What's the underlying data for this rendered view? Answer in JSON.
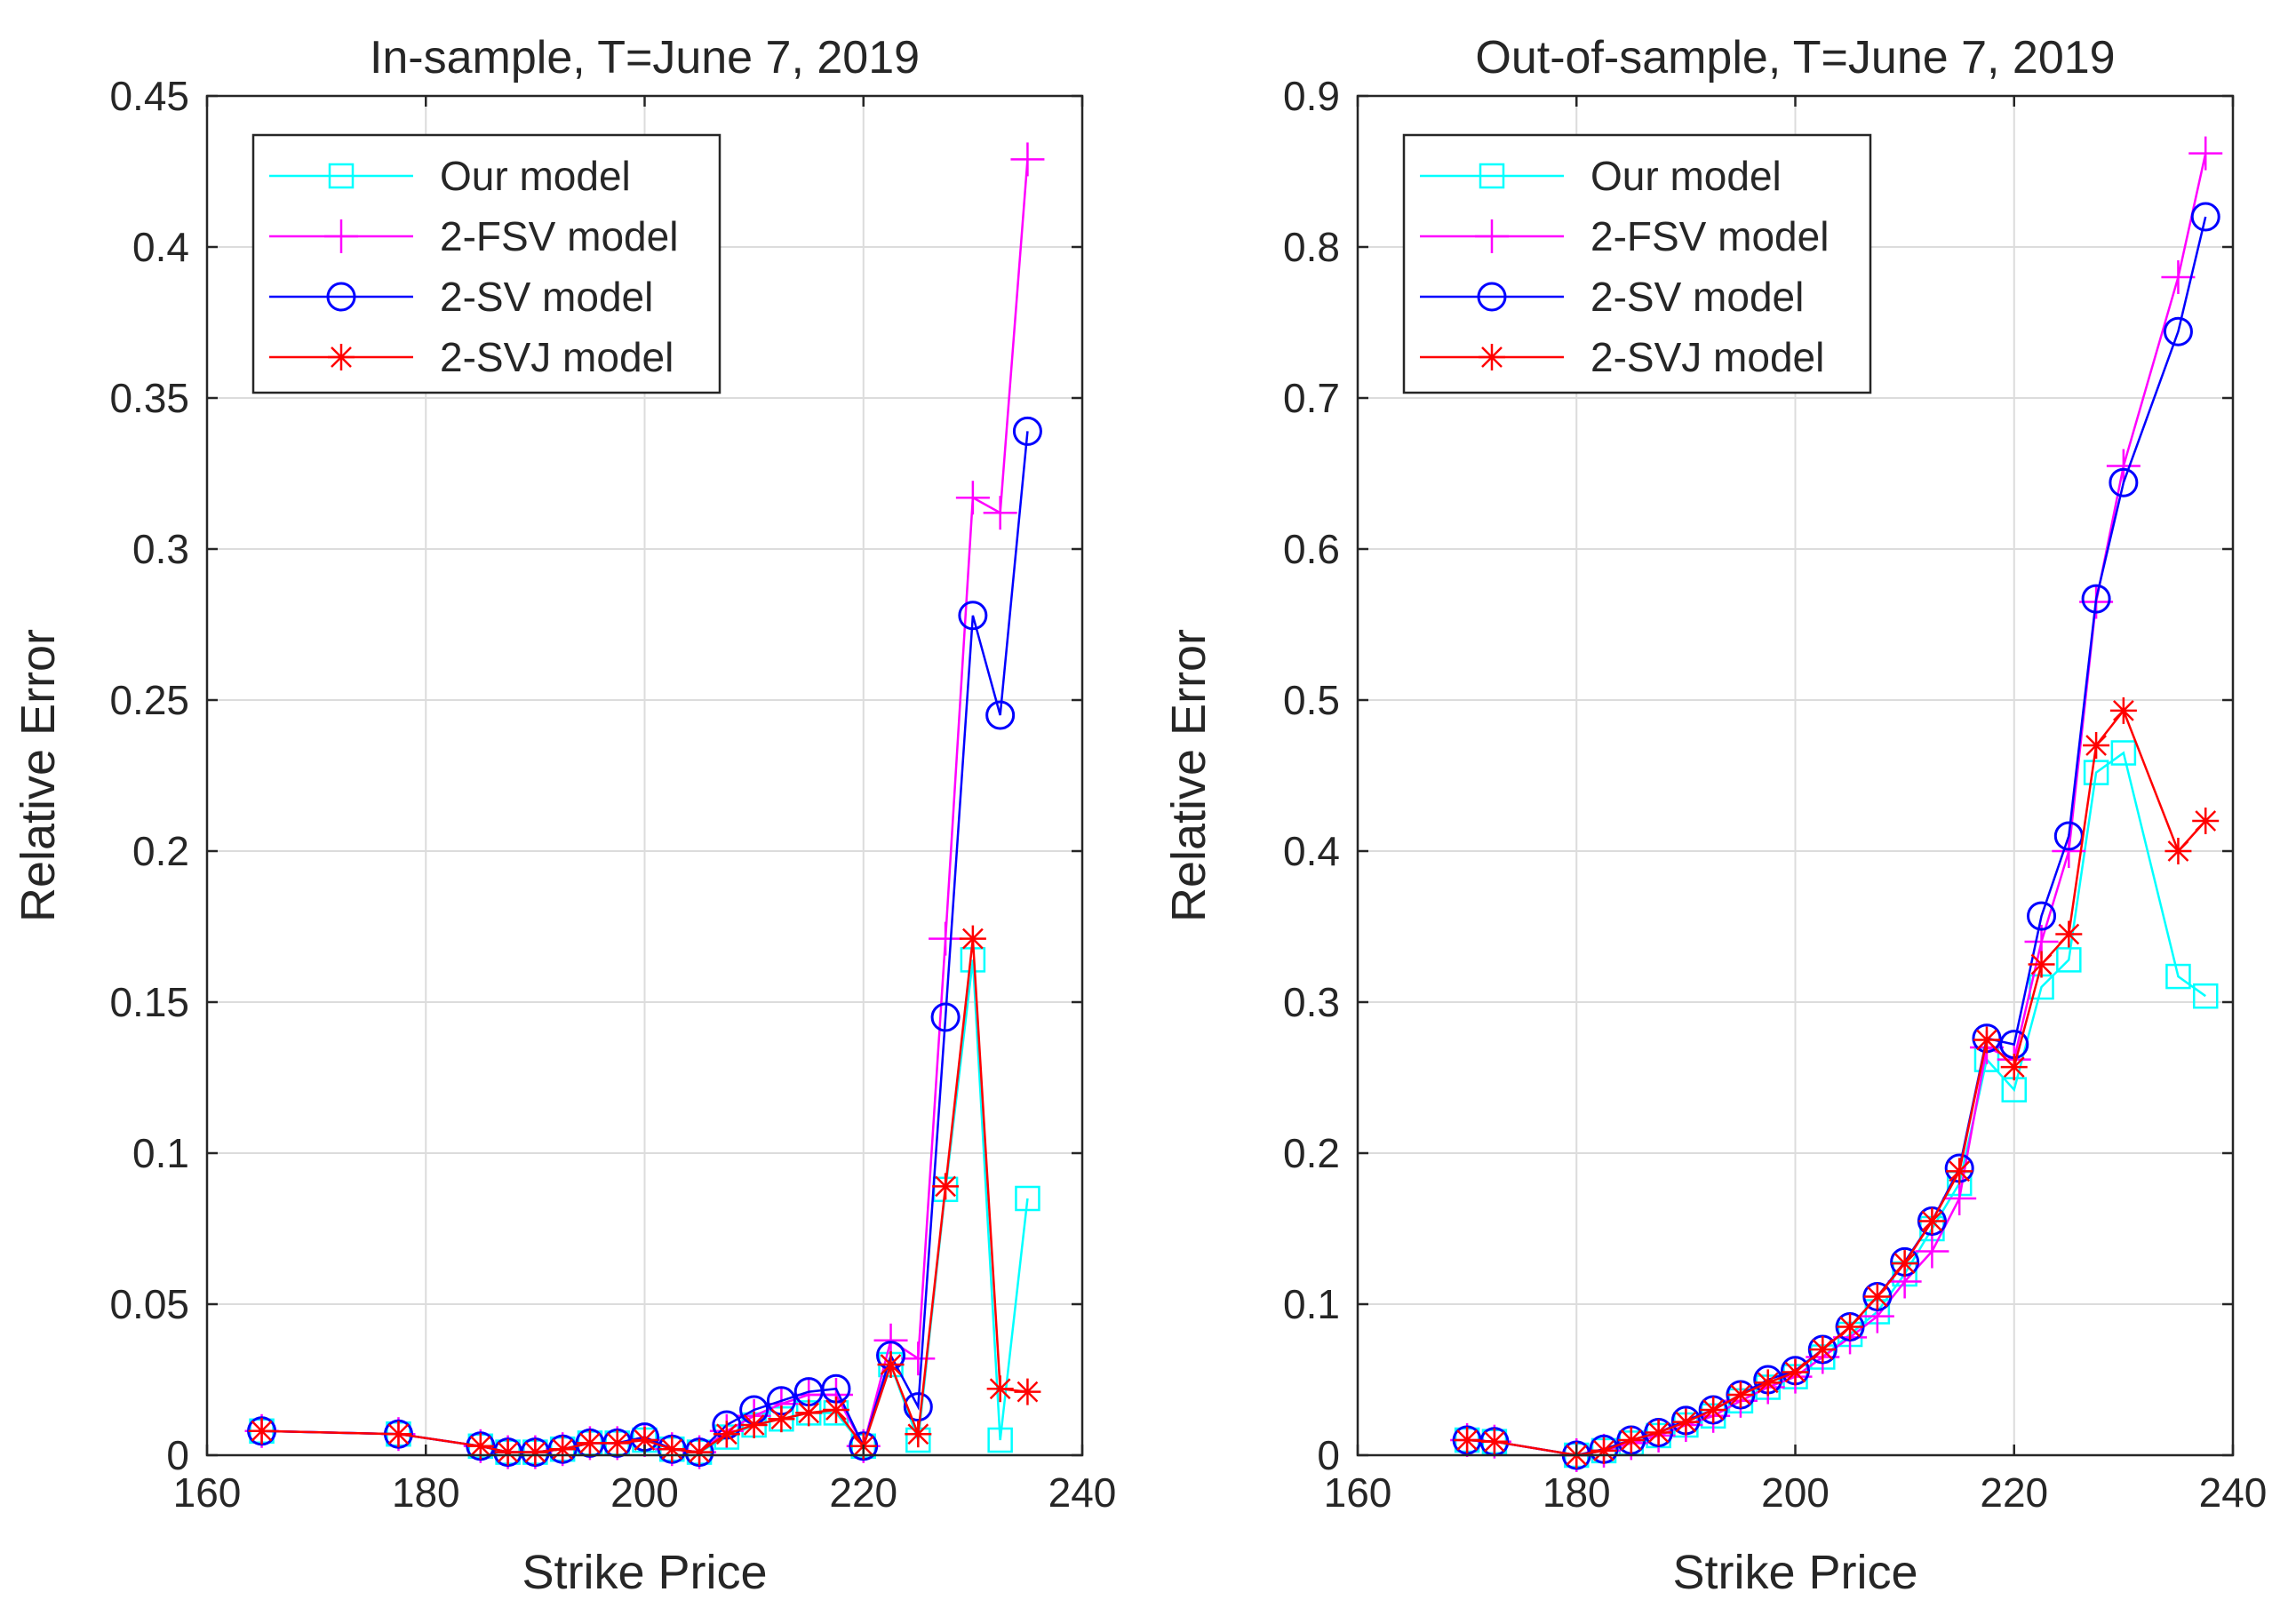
{
  "chart_data": [
    {
      "type": "line",
      "title": "In-sample, T=June 7, 2019",
      "xlabel": "Strike Price",
      "ylabel": "Relative Error",
      "xlim": [
        160,
        240
      ],
      "ylim": [
        0,
        0.45
      ],
      "xticks": [
        160,
        180,
        200,
        220,
        240
      ],
      "xtick_labels": [
        "160",
        "180",
        "200",
        "220",
        "240"
      ],
      "yticks": [
        0,
        0.05,
        0.1,
        0.15,
        0.2,
        0.25,
        0.3,
        0.35,
        0.4,
        0.45
      ],
      "ytick_labels": [
        "0",
        "0.05",
        "0.1",
        "0.15",
        "0.2",
        "0.25",
        "0.3",
        "0.35",
        "0.4",
        "0.45"
      ],
      "grid": true,
      "legend_position": "top-left",
      "x": [
        165,
        177.5,
        185,
        187.5,
        190,
        192.5,
        195,
        197.5,
        200,
        202.5,
        205,
        207.5,
        210,
        212.5,
        215,
        217.5,
        220,
        222.5,
        225,
        227.5,
        230,
        232.5,
        235
      ],
      "series": [
        {
          "name": "Our model",
          "color": "#00FFFF",
          "marker": "square",
          "values": [
            0.008,
            0.007,
            0.003,
            0.001,
            0.001,
            0.002,
            0.004,
            0.004,
            0.005,
            0.002,
            0.001,
            0.006,
            0.01,
            0.012,
            0.014,
            0.014,
            0.003,
            0.03,
            0.005,
            0.088,
            0.164,
            0.005,
            0.085
          ]
        },
        {
          "name": "2-FSV model",
          "color": "#FF00FF",
          "marker": "plus",
          "values": [
            0.008,
            0.007,
            0.003,
            0.001,
            0.001,
            0.002,
            0.004,
            0.004,
            0.005,
            0.002,
            0.001,
            0.008,
            0.013,
            0.017,
            0.02,
            0.02,
            0.003,
            0.038,
            0.032,
            0.171,
            0.317,
            0.312,
            0.429
          ]
        },
        {
          "name": "2-SV model",
          "color": "#0000FF",
          "marker": "circle",
          "values": [
            0.008,
            0.007,
            0.003,
            0.001,
            0.001,
            0.002,
            0.004,
            0.004,
            0.006,
            0.002,
            0.001,
            0.01,
            0.015,
            0.018,
            0.021,
            0.022,
            0.003,
            0.033,
            0.016,
            0.145,
            0.278,
            0.245,
            0.339
          ]
        },
        {
          "name": "2-SVJ model",
          "color": "#FF0000",
          "marker": "asterisk",
          "values": [
            0.008,
            0.007,
            0.003,
            0.001,
            0.001,
            0.002,
            0.004,
            0.004,
            0.005,
            0.002,
            0.001,
            0.007,
            0.01,
            0.012,
            0.014,
            0.015,
            0.003,
            0.03,
            0.007,
            0.089,
            0.171,
            0.022,
            0.021
          ]
        }
      ]
    },
    {
      "type": "line",
      "title": "Out-of-sample, T=June 7, 2019",
      "xlabel": "Strike Price",
      "ylabel": "Relative Error",
      "xlim": [
        160,
        240
      ],
      "ylim": [
        0,
        0.9
      ],
      "xticks": [
        160,
        180,
        200,
        220,
        240
      ],
      "xtick_labels": [
        "160",
        "180",
        "200",
        "220",
        "240"
      ],
      "yticks": [
        0,
        0.1,
        0.2,
        0.3,
        0.4,
        0.5,
        0.6,
        0.7,
        0.8,
        0.9
      ],
      "ytick_labels": [
        "0",
        "0.1",
        "0.2",
        "0.3",
        "0.4",
        "0.5",
        "0.6",
        "0.7",
        "0.8",
        "0.9"
      ],
      "grid": true,
      "legend_position": "top-left",
      "x": [
        170,
        172.5,
        180,
        182.5,
        185,
        187.5,
        190,
        192.5,
        195,
        197.5,
        200,
        202.5,
        205,
        207.5,
        210,
        212.5,
        215,
        217.5,
        220,
        222.5,
        225,
        227.5,
        230,
        235,
        237.5
      ],
      "series": [
        {
          "name": "Our model",
          "color": "#00FFFF",
          "marker": "square",
          "values": [
            0.01,
            0.009,
            0.0,
            0.003,
            0.008,
            0.013,
            0.02,
            0.026,
            0.036,
            0.045,
            0.052,
            0.065,
            0.08,
            0.095,
            0.12,
            0.15,
            0.18,
            0.262,
            0.242,
            0.31,
            0.328,
            0.452,
            0.465,
            0.317,
            0.304
          ]
        },
        {
          "name": "2-FSV model",
          "color": "#FF00FF",
          "marker": "plus",
          "values": [
            0.01,
            0.009,
            0.0,
            0.003,
            0.008,
            0.013,
            0.02,
            0.026,
            0.036,
            0.045,
            0.052,
            0.065,
            0.078,
            0.092,
            0.115,
            0.135,
            0.17,
            0.27,
            0.262,
            0.34,
            0.4,
            0.565,
            0.655,
            0.78,
            0.862
          ]
        },
        {
          "name": "2-SV model",
          "color": "#0000FF",
          "marker": "circle",
          "values": [
            0.01,
            0.009,
            0.0,
            0.004,
            0.01,
            0.015,
            0.023,
            0.03,
            0.04,
            0.05,
            0.056,
            0.07,
            0.085,
            0.105,
            0.128,
            0.155,
            0.19,
            0.276,
            0.272,
            0.357,
            0.41,
            0.567,
            0.644,
            0.744,
            0.82
          ]
        },
        {
          "name": "2-SVJ model",
          "color": "#FF0000",
          "marker": "asterisk",
          "values": [
            0.01,
            0.009,
            0.0,
            0.003,
            0.01,
            0.015,
            0.022,
            0.03,
            0.04,
            0.048,
            0.055,
            0.07,
            0.085,
            0.105,
            0.127,
            0.155,
            0.188,
            0.275,
            0.257,
            0.325,
            0.345,
            0.47,
            0.493,
            0.4,
            0.42
          ]
        }
      ]
    }
  ]
}
